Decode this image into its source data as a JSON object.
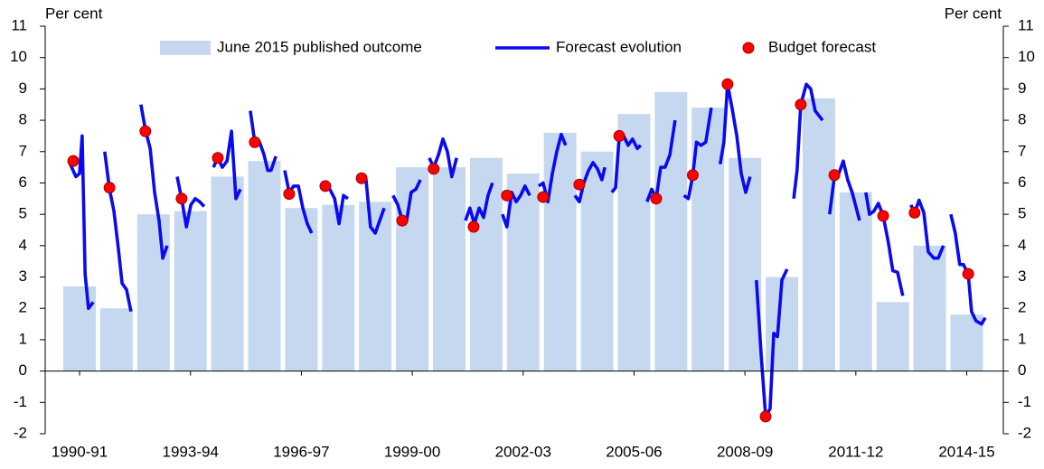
{
  "chart_data": {
    "type": "combo",
    "ylabel": "Per cent",
    "y2label": "Per cent",
    "ylim": [
      -2,
      11
    ],
    "yticks": [
      -2,
      -1,
      0,
      1,
      2,
      3,
      4,
      5,
      6,
      7,
      8,
      9,
      10,
      11
    ],
    "y2lim": [
      -2,
      11
    ],
    "y2ticks": [
      -2,
      -1,
      0,
      1,
      2,
      3,
      4,
      5,
      6,
      7,
      8,
      9,
      10,
      11
    ],
    "xlim": [
      -0.93,
      24.99
    ],
    "xticks": [
      {
        "value": 0,
        "label": "1990-91"
      },
      {
        "value": 3,
        "label": "1993-94"
      },
      {
        "value": 6,
        "label": "1996-97"
      },
      {
        "value": 9,
        "label": "1999-00"
      },
      {
        "value": 12,
        "label": "2002-03"
      },
      {
        "value": 15,
        "label": "2005-06"
      },
      {
        "value": 18,
        "label": "2008-09"
      },
      {
        "value": 21,
        "label": "2011-12"
      },
      {
        "value": 24,
        "label": "2014-15"
      }
    ],
    "legend": "top",
    "series": [
      {
        "name": "June 2015 published outcome",
        "type": "bar",
        "color": "#c6d8f0",
        "x": [
          0,
          1,
          2,
          3,
          4,
          5,
          6,
          7,
          8,
          9,
          10,
          11,
          12,
          13,
          14,
          15,
          16,
          17,
          18,
          19,
          20,
          21,
          22,
          23,
          24
        ],
        "values": [
          2.7,
          2.0,
          5.0,
          5.1,
          6.2,
          6.7,
          5.2,
          5.3,
          5.4,
          6.5,
          6.5,
          6.8,
          6.3,
          7.6,
          7.0,
          8.2,
          8.9,
          8.4,
          6.8,
          3.0,
          8.7,
          5.7,
          2.2,
          4.0,
          1.8
        ]
      },
      {
        "name": "Forecast evolution",
        "type": "line",
        "color": "#0a0af0",
        "x": [
          -0.29,
          -0.1,
          0,
          0.07,
          0.15,
          0.24,
          0.37,
          null,
          0.68,
          0.81,
          0.93,
          1.05,
          1.15,
          1.27,
          1.39,
          null,
          1.66,
          1.78,
          1.91,
          2.03,
          2.15,
          2.25,
          2.37,
          null,
          2.64,
          2.76,
          2.89,
          3.01,
          3.13,
          3.25,
          3.37,
          null,
          3.62,
          3.74,
          3.86,
          3.99,
          4.11,
          4.23,
          4.35,
          null,
          4.62,
          4.74,
          4.87,
          4.99,
          5.09,
          5.18,
          5.31,
          null,
          5.55,
          5.67,
          5.79,
          5.92,
          6.04,
          6.16,
          6.28,
          null,
          6.53,
          6.65,
          6.77,
          6.9,
          7.02,
          7.14,
          7.26,
          null,
          7.51,
          7.63,
          7.75,
          7.87,
          8.0,
          8.12,
          8.24,
          null,
          8.48,
          8.61,
          8.73,
          8.85,
          8.97,
          9.1,
          9.22,
          null,
          9.46,
          9.58,
          9.71,
          9.83,
          9.95,
          10.07,
          10.2,
          null,
          10.44,
          10.56,
          10.68,
          10.81,
          10.93,
          11.05,
          11.17,
          null,
          11.44,
          11.56,
          11.69,
          11.81,
          11.93,
          12.05,
          12.18,
          null,
          12.42,
          12.54,
          12.67,
          12.79,
          12.91,
          13.03,
          13.15,
          null,
          13.4,
          13.52,
          13.64,
          13.77,
          13.89,
          14.01,
          14.13,
          14.21,
          null,
          14.4,
          14.5,
          14.6,
          14.72,
          14.84,
          14.96,
          15.09,
          15.18,
          null,
          15.35,
          15.48,
          15.6,
          15.72,
          15.84,
          15.97,
          16.11,
          null,
          16.35,
          16.47,
          16.59,
          16.69,
          16.81,
          16.94,
          17.09,
          null,
          17.33,
          17.43,
          17.53,
          17.65,
          17.78,
          17.9,
          18.02,
          18.14,
          null,
          18.31,
          18.44,
          18.56,
          18.68,
          18.78,
          18.88,
          19.0,
          19.14,
          null,
          19.32,
          19.41,
          19.51,
          19.66,
          19.78,
          19.9,
          20.1,
          null,
          20.29,
          20.42,
          20.54,
          20.66,
          20.78,
          20.9,
          21.1,
          null,
          21.27,
          21.37,
          21.49,
          21.61,
          21.74,
          21.88,
          22.0,
          22.13,
          22.27,
          null,
          22.49,
          22.59,
          22.71,
          22.84,
          22.96,
          23.11,
          23.23,
          23.37,
          null,
          23.57,
          23.69,
          23.81,
          23.91,
          24.04,
          24.13,
          24.25,
          24.4,
          24.5
        ],
        "values": [
          6.7,
          6.2,
          6.3,
          7.5,
          3.1,
          2.0,
          2.2,
          null,
          7.0,
          5.8,
          5.1,
          3.9,
          2.8,
          2.6,
          1.9,
          null,
          8.5,
          7.7,
          7.1,
          5.7,
          4.8,
          3.6,
          4.0,
          null,
          6.2,
          5.5,
          4.6,
          5.3,
          5.5,
          5.4,
          5.25,
          null,
          6.5,
          6.8,
          6.5,
          6.7,
          7.65,
          5.5,
          5.8,
          null,
          8.3,
          7.3,
          7.3,
          6.9,
          6.4,
          6.4,
          6.85,
          null,
          6.4,
          5.7,
          5.9,
          5.9,
          5.2,
          4.7,
          4.4,
          null,
          5.8,
          5.9,
          5.8,
          5.5,
          4.7,
          5.6,
          5.5,
          null,
          6.2,
          6.15,
          6.1,
          4.6,
          4.4,
          4.8,
          5.2,
          null,
          5.6,
          5.3,
          4.8,
          4.8,
          5.7,
          5.8,
          6.1,
          null,
          6.8,
          6.5,
          6.9,
          7.4,
          7.0,
          6.2,
          6.8,
          null,
          4.8,
          5.2,
          4.7,
          5.2,
          4.9,
          5.6,
          6.0,
          null,
          5.0,
          4.6,
          5.7,
          5.4,
          5.6,
          5.9,
          5.6,
          null,
          5.9,
          6.0,
          5.4,
          6.3,
          7.0,
          7.55,
          7.2,
          null,
          5.6,
          5.4,
          6.0,
          6.4,
          6.65,
          6.45,
          6.1,
          6.5,
          null,
          5.7,
          5.85,
          7.5,
          7.5,
          7.2,
          7.4,
          7.1,
          7.2,
          null,
          5.4,
          5.8,
          5.5,
          6.5,
          6.5,
          6.9,
          8.0,
          null,
          5.6,
          5.5,
          6.25,
          7.3,
          7.2,
          7.3,
          8.4,
          null,
          6.6,
          7.3,
          9.15,
          8.4,
          7.5,
          6.3,
          5.7,
          6.2,
          null,
          2.9,
          0.5,
          -1.45,
          -1.2,
          1.2,
          1.1,
          2.9,
          3.25,
          null,
          5.5,
          6.4,
          8.5,
          9.15,
          9.0,
          8.3,
          8.0,
          null,
          5.0,
          6.2,
          6.3,
          6.7,
          6.1,
          5.7,
          4.8,
          null,
          5.7,
          5.0,
          5.1,
          5.35,
          4.95,
          4.1,
          3.2,
          3.15,
          2.4,
          null,
          5.3,
          5.05,
          5.45,
          5.05,
          3.8,
          3.6,
          3.6,
          4.0,
          null,
          5.0,
          4.4,
          3.4,
          3.4,
          3.1,
          1.9,
          1.6,
          1.5,
          1.7
        ]
      },
      {
        "name": "Budget forecast",
        "type": "scatter",
        "color": "#ff0000",
        "x": [
          -0.17,
          0.81,
          1.78,
          2.76,
          3.74,
          4.74,
          5.67,
          6.65,
          7.63,
          8.73,
          9.58,
          10.66,
          11.56,
          12.54,
          13.52,
          14.6,
          15.6,
          16.59,
          17.53,
          18.56,
          19.51,
          20.42,
          21.74,
          22.59,
          24.04
        ],
        "values": [
          6.7,
          5.85,
          7.65,
          5.5,
          6.8,
          7.3,
          5.65,
          5.9,
          6.15,
          4.8,
          6.45,
          4.6,
          5.6,
          5.55,
          5.95,
          7.5,
          5.5,
          6.25,
          9.15,
          -1.45,
          8.5,
          6.25,
          4.95,
          5.05,
          3.1
        ]
      }
    ]
  }
}
